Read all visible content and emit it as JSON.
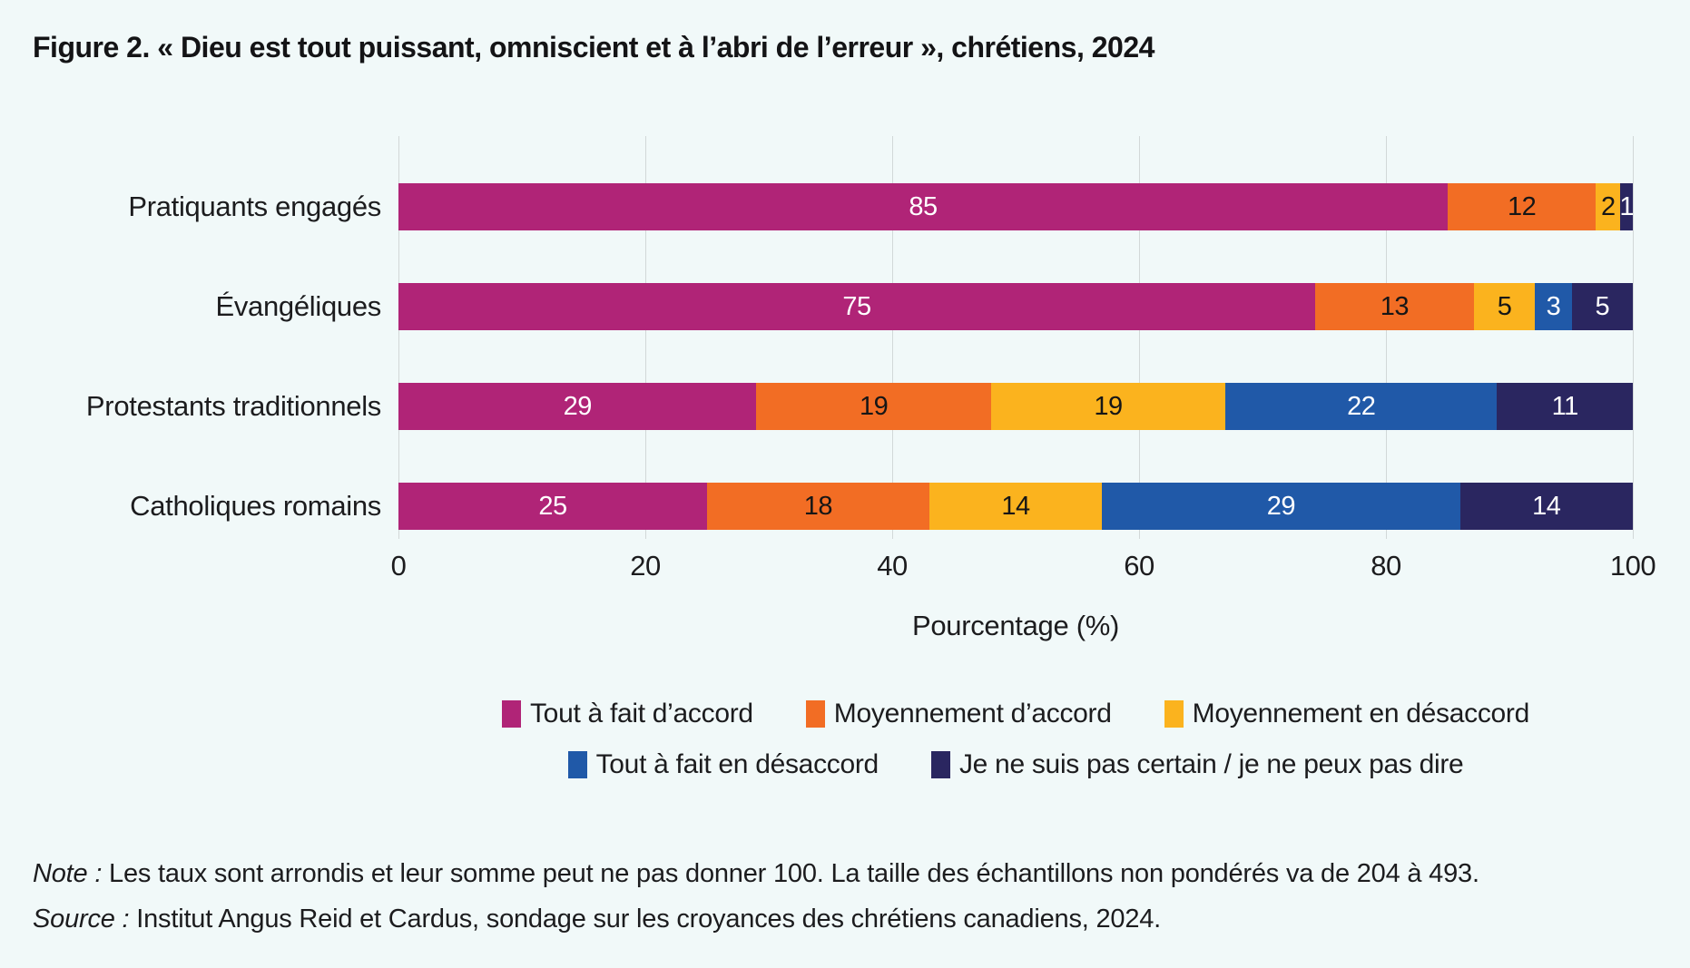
{
  "title": "Figure 2. « Dieu est tout puissant, omniscient et à l’abri de l’erreur », chrétiens, 2024",
  "colors": {
    "background": "#f1f9f9",
    "gridline": "#d2d8d8",
    "text": "#1c1c1e"
  },
  "chart_data": {
    "type": "bar",
    "orientation": "horizontal",
    "stacked": true,
    "title": "Figure 2. « Dieu est tout puissant, omniscient et à l’abri de l’erreur », chrétiens, 2024",
    "categories": [
      "Pratiquants engagés",
      "Évangéliques",
      "Protestants traditionnels",
      "Catholiques romains"
    ],
    "series": [
      {
        "name": "Tout à fait d’accord",
        "color": "#b02477",
        "label_color": "#ffffff",
        "values": [
          85,
          75,
          29,
          25
        ]
      },
      {
        "name": "Moyennement d’accord",
        "color": "#f26d24",
        "label_color": "#161616",
        "values": [
          12,
          13,
          19,
          18
        ]
      },
      {
        "name": "Moyennement en désaccord",
        "color": "#fbb31e",
        "label_color": "#161616",
        "values": [
          2,
          5,
          19,
          14
        ]
      },
      {
        "name": "Tout à fait en désaccord",
        "color": "#2059a8",
        "label_color": "#ffffff",
        "values": [
          0,
          3,
          22,
          29
        ]
      },
      {
        "name": "Je ne suis pas certain / je ne peux pas dire",
        "color": "#2a2660",
        "label_color": "#ffffff",
        "values": [
          1,
          5,
          11,
          14
        ]
      }
    ],
    "xlabel": "Pourcentage (%)",
    "xlim": [
      0,
      100
    ],
    "ticks": [
      0,
      20,
      40,
      60,
      80,
      100
    ],
    "grid": true,
    "legend_position": "bottom-center",
    "legend_rows": [
      [
        0,
        1,
        2
      ],
      [
        3,
        4
      ]
    ]
  },
  "notes": {
    "note_prefix": "Note :",
    "note_text": " Les taux sont arrondis et leur somme peut ne pas donner 100. La taille des échantillons non pondérés va de 204 à 493.",
    "source_prefix": "Source :",
    "source_text": " Institut Angus Reid et Cardus, sondage sur les croyances des chrétiens canadiens, 2024."
  }
}
